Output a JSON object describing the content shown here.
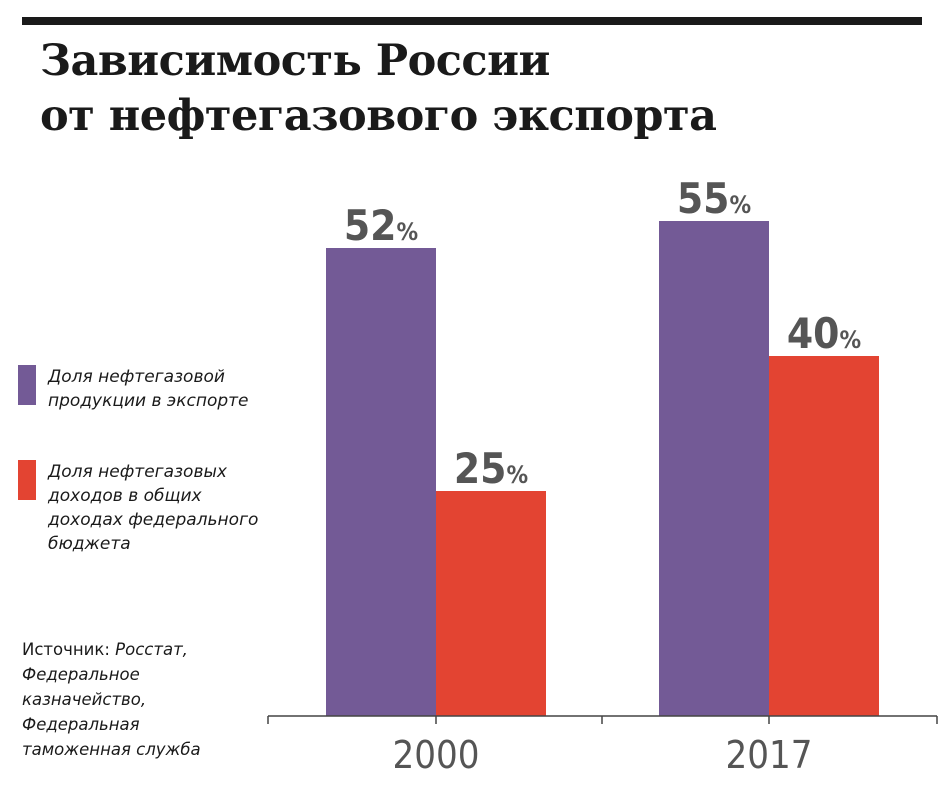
{
  "title": {
    "line1": "Зависимость России",
    "line2": "от нефтегазового экспорта"
  },
  "legend": [
    {
      "label_line1": "Доля нефтегазовой",
      "label_line2": "продукции в экспорте",
      "color": "#735a96"
    },
    {
      "label_line1": "Доля нефтегазовых",
      "label_line2": "доходов в общих",
      "label_line3": "доходах федерального",
      "label_line4": "бюджета",
      "color": "#e34432"
    }
  ],
  "source": {
    "prefix": "Источник:",
    "line1": "Росстат,",
    "line2": "Федеральное",
    "line3": "казначейство,",
    "line4": "Федеральная",
    "line5": "таможенная служба"
  },
  "chart_data": {
    "type": "bar",
    "title": "Зависимость России от нефтегазового экспорта",
    "xlabel": "",
    "ylabel": "",
    "ylim": [
      0,
      100
    ],
    "grid": false,
    "legend_position": "left",
    "categories": [
      "2000",
      "2017"
    ],
    "series": [
      {
        "name": "Доля нефтегазовой продукции в экспорте",
        "values": [
          52,
          55
        ],
        "color": "#735a96"
      },
      {
        "name": "Доля нефтегазовых доходов в общих доходах федерального бюджета",
        "values": [
          25,
          40
        ],
        "color": "#e34432"
      }
    ],
    "value_suffix": "%"
  }
}
